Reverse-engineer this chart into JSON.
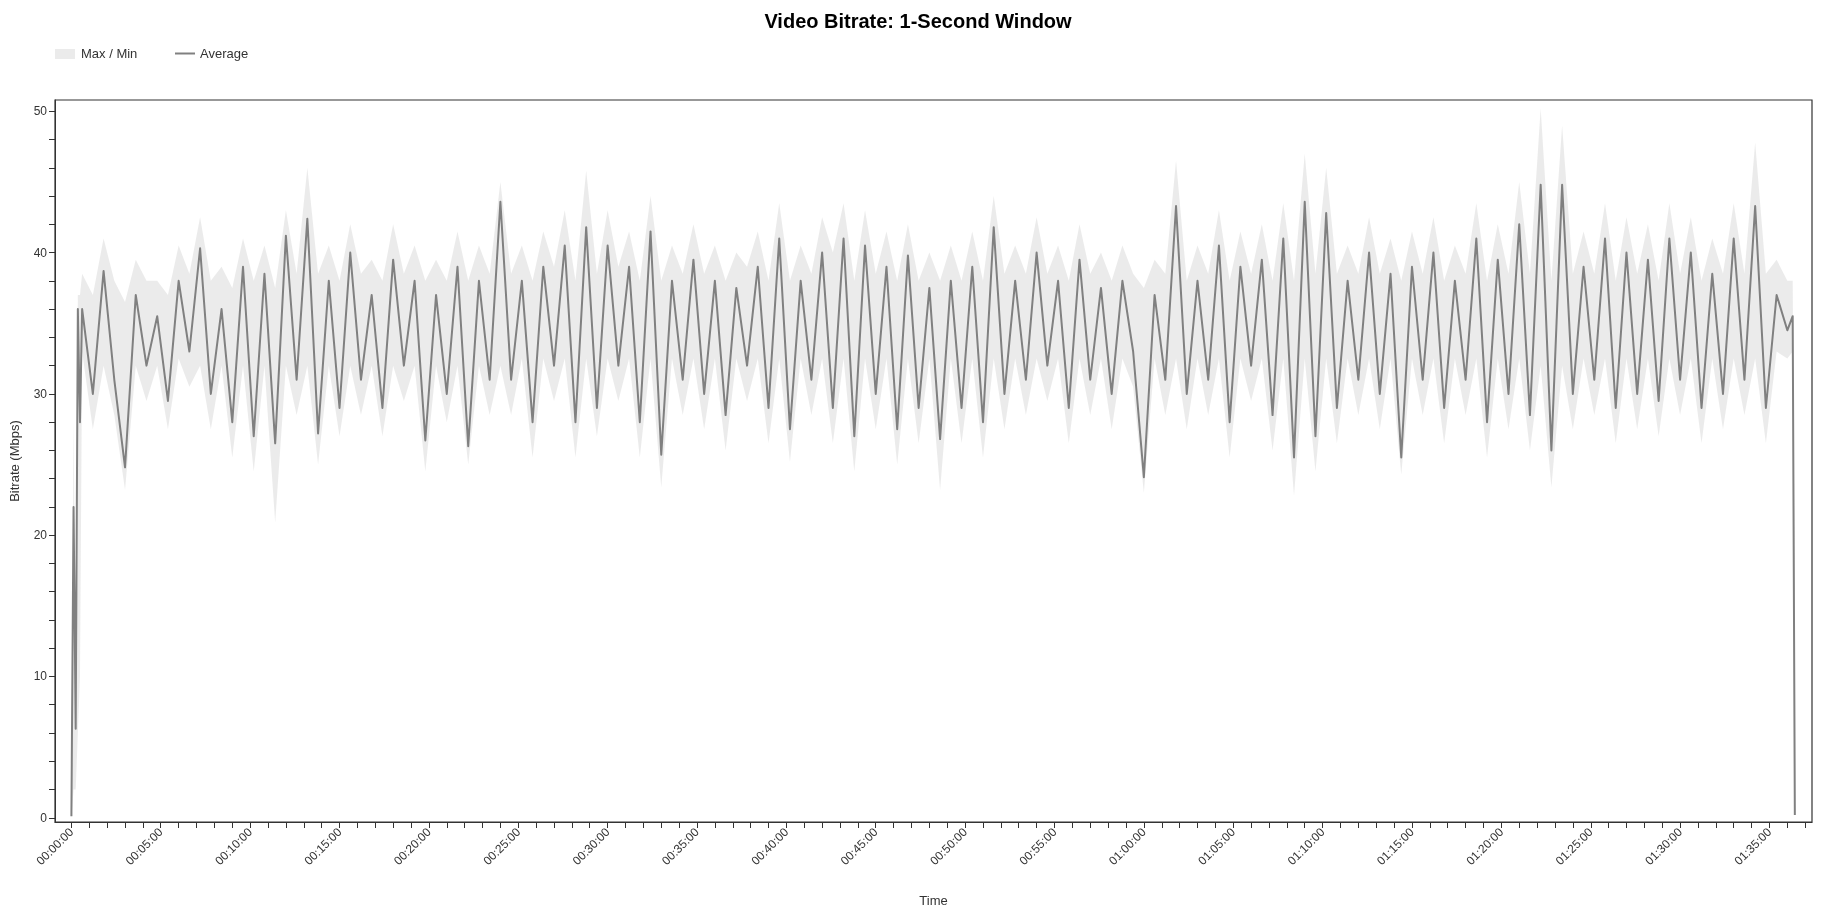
{
  "chart_data": {
    "type": "line",
    "title": "Video Bitrate: 1-Second Window",
    "xlabel": "Time",
    "ylabel": "Bitrate (Mbps)",
    "legend": "top left",
    "grid": false,
    "marker": "none",
    "annotations": [
      "Max / Min"
    ],
    "xlim": [
      -0.0153,
      1.623
    ],
    "ylim": [
      -0.3,
      50.8
    ],
    "xticks": [
      {
        "value": 0,
        "label": "00:00:00"
      },
      {
        "value": 0.0167,
        "label": null
      },
      {
        "value": 0.0333,
        "label": null
      },
      {
        "value": 0.05,
        "label": null
      },
      {
        "value": 0.0667,
        "label": null
      },
      {
        "value": 0.0833,
        "label": "00:05:00"
      },
      {
        "value": 0.1,
        "label": null
      },
      {
        "value": 0.1167,
        "label": null
      },
      {
        "value": 0.1333,
        "label": null
      },
      {
        "value": 0.15,
        "label": null
      },
      {
        "value": 0.1667,
        "label": "00:10:00"
      },
      {
        "value": 0.1833,
        "label": null
      },
      {
        "value": 0.2,
        "label": null
      },
      {
        "value": 0.2167,
        "label": null
      },
      {
        "value": 0.2333,
        "label": null
      },
      {
        "value": 0.25,
        "label": "00:15:00"
      },
      {
        "value": 0.2667,
        "label": null
      },
      {
        "value": 0.2833,
        "label": null
      },
      {
        "value": 0.3,
        "label": null
      },
      {
        "value": 0.3167,
        "label": null
      },
      {
        "value": 0.3333,
        "label": "00:20:00"
      },
      {
        "value": 0.35,
        "label": null
      },
      {
        "value": 0.3667,
        "label": null
      },
      {
        "value": 0.3833,
        "label": null
      },
      {
        "value": 0.4,
        "label": null
      },
      {
        "value": 0.4167,
        "label": "00:25:00"
      },
      {
        "value": 0.4333,
        "label": null
      },
      {
        "value": 0.45,
        "label": null
      },
      {
        "value": 0.4667,
        "label": null
      },
      {
        "value": 0.4833,
        "label": null
      },
      {
        "value": 0.5,
        "label": "00:30:00"
      },
      {
        "value": 0.5167,
        "label": null
      },
      {
        "value": 0.5333,
        "label": null
      },
      {
        "value": 0.55,
        "label": null
      },
      {
        "value": 0.5667,
        "label": null
      },
      {
        "value": 0.5833,
        "label": "00:35:00"
      },
      {
        "value": 0.6,
        "label": null
      },
      {
        "value": 0.6167,
        "label": null
      },
      {
        "value": 0.6333,
        "label": null
      },
      {
        "value": 0.65,
        "label": null
      },
      {
        "value": 0.6667,
        "label": "00:40:00"
      },
      {
        "value": 0.6833,
        "label": null
      },
      {
        "value": 0.7,
        "label": null
      },
      {
        "value": 0.7167,
        "label": null
      },
      {
        "value": 0.7333,
        "label": null
      },
      {
        "value": 0.75,
        "label": "00:45:00"
      },
      {
        "value": 0.7667,
        "label": null
      },
      {
        "value": 0.7833,
        "label": null
      },
      {
        "value": 0.8,
        "label": null
      },
      {
        "value": 0.8167,
        "label": null
      },
      {
        "value": 0.8333,
        "label": "00:50:00"
      },
      {
        "value": 0.85,
        "label": null
      },
      {
        "value": 0.8667,
        "label": null
      },
      {
        "value": 0.8833,
        "label": null
      },
      {
        "value": 0.9,
        "label": null
      },
      {
        "value": 0.9167,
        "label": "00:55:00"
      },
      {
        "value": 0.9333,
        "label": null
      },
      {
        "value": 0.95,
        "label": null
      },
      {
        "value": 0.9667,
        "label": null
      },
      {
        "value": 0.9833,
        "label": null
      },
      {
        "value": 1,
        "label": "01:00:00"
      },
      {
        "value": 1.0167,
        "label": null
      },
      {
        "value": 1.0333,
        "label": null
      },
      {
        "value": 1.05,
        "label": null
      },
      {
        "value": 1.0667,
        "label": null
      },
      {
        "value": 1.0833,
        "label": "01:05:00"
      },
      {
        "value": 1.1,
        "label": null
      },
      {
        "value": 1.1167,
        "label": null
      },
      {
        "value": 1.1333,
        "label": null
      },
      {
        "value": 1.15,
        "label": null
      },
      {
        "value": 1.1667,
        "label": "01:10:00"
      },
      {
        "value": 1.1833,
        "label": null
      },
      {
        "value": 1.2,
        "label": null
      },
      {
        "value": 1.2167,
        "label": null
      },
      {
        "value": 1.2333,
        "label": null
      },
      {
        "value": 1.25,
        "label": "01:15:00"
      },
      {
        "value": 1.2667,
        "label": null
      },
      {
        "value": 1.2833,
        "label": null
      },
      {
        "value": 1.3,
        "label": null
      },
      {
        "value": 1.3167,
        "label": null
      },
      {
        "value": 1.3333,
        "label": "01:20:00"
      },
      {
        "value": 1.35,
        "label": null
      },
      {
        "value": 1.3667,
        "label": null
      },
      {
        "value": 1.3833,
        "label": null
      },
      {
        "value": 1.4,
        "label": null
      },
      {
        "value": 1.4167,
        "label": "01:25:00"
      },
      {
        "value": 1.4333,
        "label": null
      },
      {
        "value": 1.45,
        "label": null
      },
      {
        "value": 1.4667,
        "label": null
      },
      {
        "value": 1.4833,
        "label": null
      },
      {
        "value": 1.5,
        "label": "01:30:00"
      },
      {
        "value": 1.5167,
        "label": null
      },
      {
        "value": 1.5333,
        "label": null
      },
      {
        "value": 1.55,
        "label": null
      },
      {
        "value": 1.5667,
        "label": null
      },
      {
        "value": 1.5833,
        "label": "01:35:00"
      },
      {
        "value": 1.6,
        "label": null
      },
      {
        "value": 1.6167,
        "label": null
      }
    ],
    "yticks": [
      0,
      {
        "value": 2,
        "label": null
      },
      {
        "value": 4,
        "label": null
      },
      {
        "value": 6,
        "label": null
      },
      {
        "value": 8,
        "label": null
      },
      10,
      {
        "value": 12,
        "label": null
      },
      {
        "value": 14,
        "label": null
      },
      {
        "value": 16,
        "label": null
      },
      {
        "value": 18,
        "label": null
      },
      20,
      {
        "value": 22,
        "label": null
      },
      {
        "value": 24,
        "label": null
      },
      {
        "value": 26,
        "label": null
      },
      {
        "value": 28,
        "label": null
      },
      30,
      {
        "value": 32,
        "label": null
      },
      {
        "value": 34,
        "label": null
      },
      {
        "value": 36,
        "label": null
      },
      {
        "value": 38,
        "label": null
      },
      40,
      {
        "value": 42,
        "label": null
      },
      {
        "value": 44,
        "label": null
      },
      {
        "value": 46,
        "label": null
      },
      {
        "value": 48,
        "label": null
      },
      50
    ],
    "x": [
      0,
      0.002,
      0.004,
      0.006,
      0.008,
      0.01,
      0.02,
      0.03,
      0.04,
      0.05,
      0.06,
      0.07,
      0.08,
      0.09,
      0.1,
      0.11,
      0.12,
      0.13,
      0.14,
      0.15,
      0.16,
      0.17,
      0.18,
      0.19,
      0.2,
      0.21,
      0.22,
      0.23,
      0.24,
      0.25,
      0.26,
      0.27,
      0.28,
      0.29,
      0.3,
      0.31,
      0.32,
      0.33,
      0.34,
      0.35,
      0.36,
      0.37,
      0.38,
      0.39,
      0.4,
      0.41,
      0.42,
      0.43,
      0.44,
      0.45,
      0.46,
      0.47,
      0.48,
      0.49,
      0.5,
      0.51,
      0.52,
      0.53,
      0.54,
      0.55,
      0.56,
      0.57,
      0.58,
      0.59,
      0.6,
      0.61,
      0.62,
      0.63,
      0.64,
      0.65,
      0.66,
      0.67,
      0.68,
      0.69,
      0.7,
      0.71,
      0.72,
      0.73,
      0.74,
      0.75,
      0.76,
      0.77,
      0.78,
      0.79,
      0.8,
      0.81,
      0.82,
      0.83,
      0.84,
      0.85,
      0.86,
      0.87,
      0.88,
      0.89,
      0.9,
      0.91,
      0.92,
      0.93,
      0.94,
      0.95,
      0.96,
      0.97,
      0.98,
      0.99,
      1,
      1.01,
      1.02,
      1.03,
      1.04,
      1.05,
      1.06,
      1.07,
      1.08,
      1.09,
      1.1,
      1.11,
      1.12,
      1.13,
      1.14,
      1.15,
      1.16,
      1.17,
      1.18,
      1.19,
      1.2,
      1.21,
      1.22,
      1.23,
      1.24,
      1.25,
      1.26,
      1.27,
      1.28,
      1.29,
      1.3,
      1.31,
      1.32,
      1.33,
      1.34,
      1.35,
      1.36,
      1.37,
      1.38,
      1.39,
      1.4,
      1.41,
      1.42,
      1.43,
      1.44,
      1.45,
      1.46,
      1.47,
      1.48,
      1.49,
      1.5,
      1.51,
      1.52,
      1.53,
      1.54,
      1.55,
      1.56,
      1.57,
      1.58,
      1.59,
      1.6,
      1.605,
      1.607
    ],
    "series": [
      {
        "name": "Average",
        "color": "#808080",
        "values": [
          0.1,
          22,
          6.3,
          36,
          28,
          36,
          30,
          38.7,
          31,
          24.8,
          37,
          32,
          35.5,
          29.5,
          38,
          33,
          40.3,
          30,
          36,
          28,
          39,
          27,
          38.5,
          26.5,
          41.2,
          31,
          42.4,
          27.2,
          38,
          29,
          40,
          31,
          37,
          29,
          39.5,
          32,
          38,
          26.7,
          37,
          30,
          39,
          26.3,
          38,
          31,
          43.6,
          31,
          38,
          28,
          39,
          32,
          40.5,
          28,
          41.8,
          29,
          40.5,
          32,
          39,
          28,
          41.5,
          25.7,
          38,
          31,
          39.5,
          30,
          38,
          28.5,
          37.5,
          32,
          39,
          29,
          41,
          27.5,
          38,
          31,
          40,
          29,
          41,
          27,
          40.5,
          30,
          39,
          27.5,
          39.8,
          29,
          37.5,
          26.8,
          38,
          29,
          39,
          28,
          41.8,
          30,
          38,
          31,
          40,
          32,
          38,
          29,
          39.5,
          31,
          37.5,
          30,
          38,
          33,
          24.1,
          37,
          31,
          43.3,
          30,
          38,
          31,
          40.5,
          28,
          39,
          32,
          39.5,
          28.5,
          41,
          25.5,
          43.6,
          27,
          42.8,
          29,
          38,
          31,
          40,
          30,
          38.5,
          25.5,
          39,
          31,
          40,
          29,
          38,
          31,
          41,
          28,
          39.5,
          30,
          42,
          28.5,
          44.8,
          26,
          44.8,
          30,
          39,
          31,
          41,
          29,
          40,
          30,
          39.5,
          29.5,
          41,
          31,
          40,
          29,
          38.5,
          30,
          41,
          31,
          43.3,
          29,
          37,
          34.5,
          35.5,
          0.2
        ],
        "upper": [
          2,
          28,
          11,
          37,
          37,
          38.5,
          37,
          41,
          38,
          36.5,
          39.5,
          38,
          38,
          37,
          40.5,
          38.5,
          42.5,
          38,
          39,
          37.5,
          41,
          38,
          40.5,
          37.5,
          43,
          38.5,
          46,
          38.5,
          40.5,
          38,
          42,
          38.5,
          39.5,
          38,
          42,
          38.5,
          40.5,
          38,
          39.5,
          38,
          41.5,
          38,
          40.5,
          38.5,
          45,
          38.5,
          40.5,
          38,
          41.5,
          39,
          43,
          38,
          45.8,
          38.5,
          43,
          39,
          41.5,
          38,
          44,
          38,
          40.5,
          38.5,
          42,
          38.5,
          40.5,
          38,
          40,
          39,
          41.5,
          38,
          43.5,
          38,
          40.5,
          38.5,
          42.5,
          40,
          43.5,
          38,
          43,
          38.5,
          41.5,
          38,
          42,
          38,
          40,
          38,
          40.5,
          38,
          41.5,
          38,
          44,
          38.5,
          40.5,
          38.5,
          42.5,
          38.5,
          40.5,
          38,
          42,
          38.5,
          40,
          38,
          40.5,
          38.5,
          37.5,
          39.5,
          38.5,
          46.5,
          38,
          40.5,
          38.5,
          43,
          38,
          41.5,
          38.5,
          42,
          38,
          43.5,
          38,
          47,
          38.5,
          46,
          38.5,
          40.5,
          38.5,
          42.5,
          38.5,
          41,
          38,
          41.5,
          38.5,
          42.5,
          38,
          40.5,
          38.5,
          43.5,
          38,
          42,
          38.5,
          45,
          38.5,
          50.2,
          38,
          49,
          38.5,
          41.5,
          38.5,
          43.5,
          38,
          42.5,
          38.5,
          42,
          38,
          43.5,
          38.5,
          42.5,
          38,
          41,
          38.5,
          43.5,
          38.5,
          47.8,
          38.5,
          39.5,
          38,
          38,
          15
        ],
        "lower": [
          0,
          2,
          2,
          6,
          10,
          33,
          27.5,
          32,
          28.5,
          23.2,
          32,
          29.5,
          32,
          27.5,
          32.5,
          30.5,
          32,
          27.5,
          32,
          25.5,
          32,
          24.5,
          32,
          20.9,
          32,
          28.5,
          32,
          25,
          32,
          27,
          32,
          28.5,
          32,
          27,
          32,
          29.5,
          32,
          24.5,
          32,
          28,
          32,
          25,
          32,
          28.5,
          32,
          28.5,
          32.5,
          25.5,
          32.5,
          29.5,
          32.5,
          25.5,
          32.5,
          27,
          32.5,
          29.5,
          32.5,
          25.5,
          32.5,
          23.4,
          32.5,
          28.5,
          32.5,
          27.5,
          32.5,
          26,
          32.5,
          29.5,
          32.5,
          26.5,
          32.5,
          25.2,
          32.5,
          28.5,
          32.5,
          26.5,
          32.5,
          24.5,
          32.5,
          27.5,
          32.5,
          25,
          32.5,
          26.5,
          32.5,
          23.2,
          32.5,
          26.5,
          32.5,
          25.5,
          32.5,
          27.5,
          32.5,
          28.5,
          32.5,
          29.5,
          32.5,
          26.5,
          32.5,
          28.5,
          32.5,
          27.5,
          32.5,
          30.5,
          23,
          32.5,
          28.5,
          32.5,
          27.5,
          32.5,
          28.5,
          32.5,
          25.5,
          32.5,
          29.5,
          32.5,
          26,
          32.5,
          22.8,
          32.5,
          24.5,
          32.5,
          26.5,
          32.5,
          28.5,
          32.5,
          27.5,
          32.5,
          24.3,
          32.5,
          28.5,
          32.5,
          26.5,
          32.5,
          28.5,
          32.5,
          25.5,
          32.5,
          27.5,
          32.5,
          26,
          32,
          23.4,
          32,
          27.5,
          32.5,
          28.5,
          32.5,
          26.5,
          32.5,
          27.5,
          32.5,
          27,
          32.5,
          28.5,
          32.5,
          26.5,
          32.5,
          27.5,
          32.5,
          28.5,
          32.5,
          26.5,
          33,
          32.5,
          33,
          0
        ]
      }
    ]
  }
}
